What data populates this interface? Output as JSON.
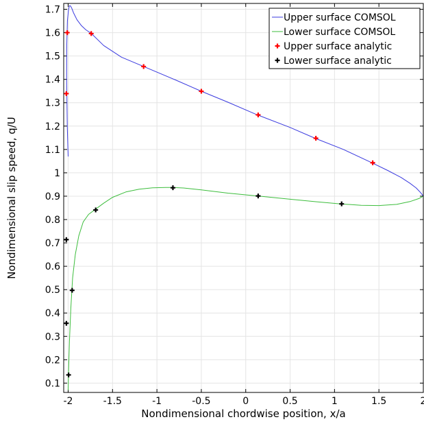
{
  "chart_data": {
    "type": "line",
    "xlabel": "Nondimensional chordwise position, x/a",
    "ylabel": "Nondimensional slip speed, q/U",
    "xlim": [
      -2.05,
      2.0
    ],
    "ylim": [
      0.06,
      1.725
    ],
    "xticks": [
      "-2",
      "-1.5",
      "-1",
      "-0.5",
      "0",
      "0.5",
      "1",
      "1.5",
      "2"
    ],
    "yticks": [
      "0.1",
      "0.2",
      "0.3",
      "0.4",
      "0.5",
      "0.6",
      "0.7",
      "0.8",
      "0.9",
      "1",
      "1.1",
      "1.2",
      "1.3",
      "1.4",
      "1.5",
      "1.6",
      "1.7"
    ],
    "grid": true,
    "legend_position": "top-right",
    "series": [
      {
        "name": "Upper surface COMSOL",
        "style": "line",
        "color": "#3a3adf",
        "x": [
          -2.0,
          -2.01,
          -2.017,
          -2.015,
          -2.008,
          -1.995,
          -1.985,
          -1.975,
          -1.96,
          -1.94,
          -1.9,
          -1.85,
          -1.8,
          -1.74,
          -1.6,
          -1.4,
          -1.15,
          -0.8,
          -0.5,
          -0.2,
          0.13,
          0.5,
          0.78,
          1.1,
          1.42,
          1.6,
          1.75,
          1.85,
          1.92,
          1.97,
          2.0
        ],
        "y": [
          1.07,
          1.2,
          1.4,
          1.55,
          1.65,
          1.7,
          1.715,
          1.715,
          1.705,
          1.685,
          1.655,
          1.63,
          1.612,
          1.597,
          1.545,
          1.495,
          1.455,
          1.399,
          1.349,
          1.302,
          1.248,
          1.194,
          1.148,
          1.1,
          1.043,
          1.01,
          0.98,
          0.955,
          0.935,
          0.915,
          0.9
        ]
      },
      {
        "name": "Lower surface COMSOL",
        "style": "line",
        "color": "#3cbd3c",
        "x": [
          -2.0,
          -1.995,
          -1.985,
          -1.97,
          -1.95,
          -1.92,
          -1.88,
          -1.83,
          -1.77,
          -1.7,
          -1.6,
          -1.5,
          -1.35,
          -1.2,
          -1.05,
          -0.9,
          -0.83,
          -0.7,
          -0.5,
          -0.2,
          0.13,
          0.5,
          0.8,
          1.07,
          1.3,
          1.5,
          1.7,
          1.85,
          1.95,
          2.0
        ],
        "y": [
          0.07,
          0.15,
          0.28,
          0.42,
          0.55,
          0.65,
          0.73,
          0.79,
          0.822,
          0.842,
          0.87,
          0.895,
          0.918,
          0.93,
          0.936,
          0.937,
          0.937,
          0.935,
          0.927,
          0.913,
          0.901,
          0.887,
          0.876,
          0.867,
          0.861,
          0.86,
          0.865,
          0.877,
          0.89,
          0.9
        ]
      },
      {
        "name": "Upper surface analytic",
        "style": "marker",
        "color": "#ff0000",
        "x": [
          -2.02,
          -2.01,
          -1.74,
          -1.15,
          -0.5,
          0.14,
          0.79,
          1.43
        ],
        "y": [
          1.339,
          1.6,
          1.596,
          1.455,
          1.349,
          1.248,
          1.148,
          1.043
        ]
      },
      {
        "name": "Lower surface analytic",
        "style": "marker",
        "color": "#000000",
        "x": [
          -2.02,
          -2.02,
          -1.995,
          -1.955,
          -1.69,
          -0.82,
          0.14,
          1.08
        ],
        "y": [
          0.356,
          0.714,
          0.135,
          0.497,
          0.841,
          0.936,
          0.901,
          0.867
        ]
      }
    ]
  }
}
